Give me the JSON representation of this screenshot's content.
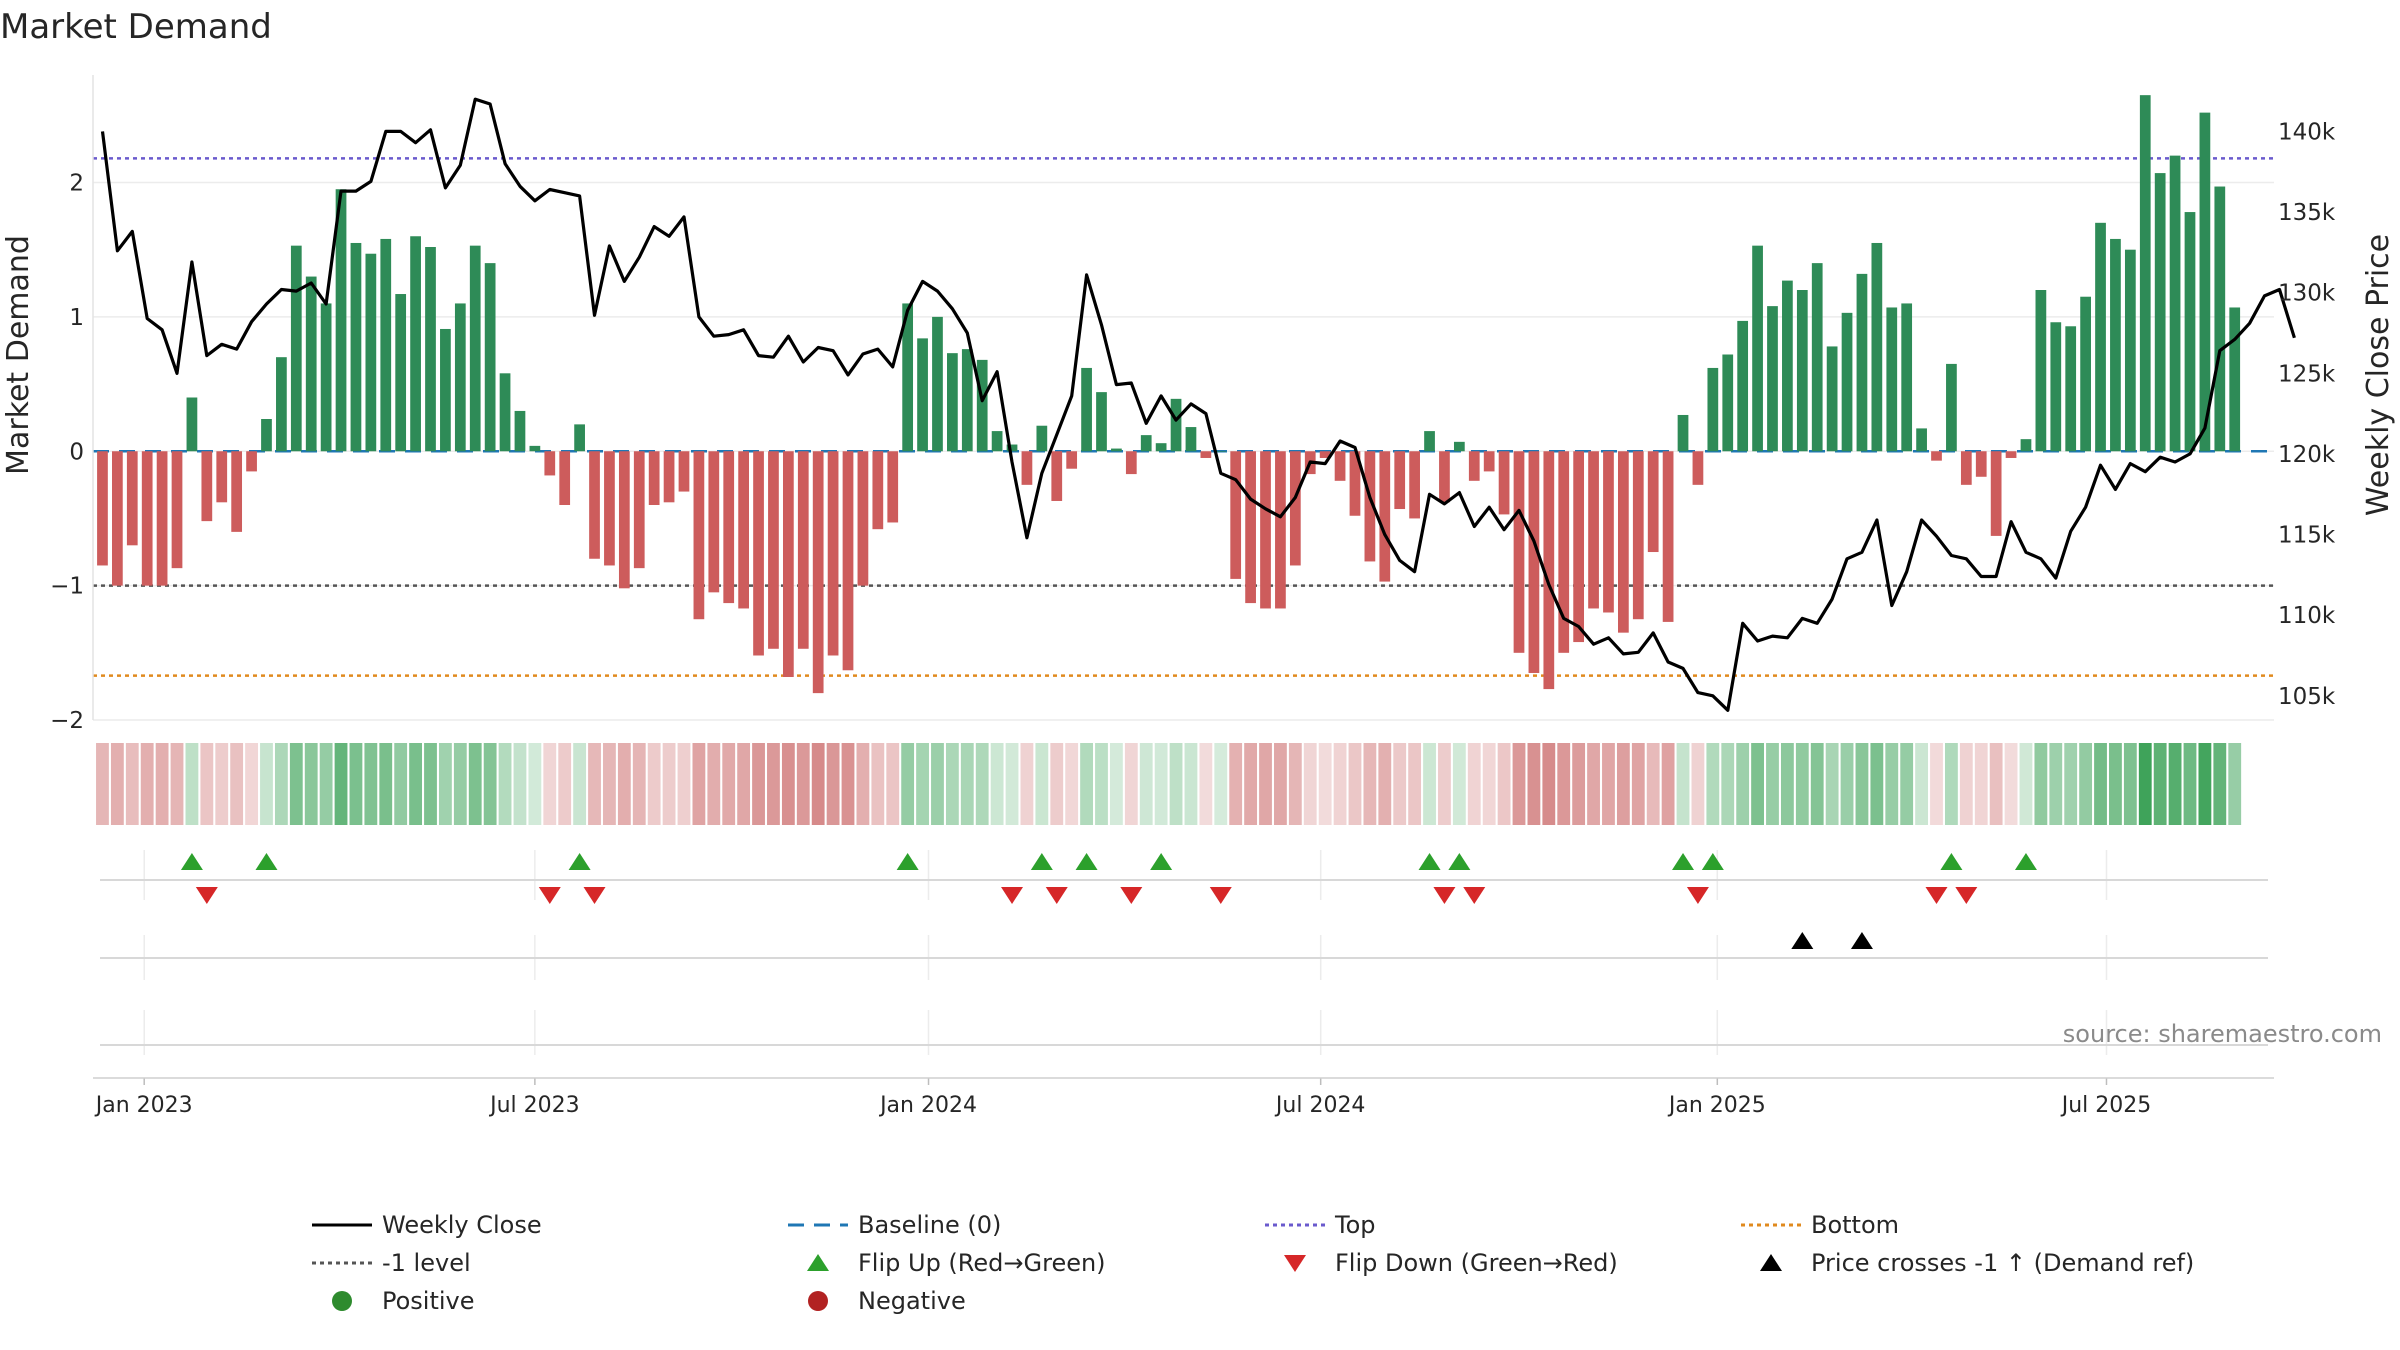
{
  "chart_data": {
    "type": "bar",
    "title": "Market Demand",
    "ylabel": "Market Demand",
    "y2label": "Weekly Close Price",
    "ylim": [
      -2.0,
      2.8
    ],
    "y2lim": [
      103500,
      143500
    ],
    "yticks": [
      -2,
      -1,
      0,
      1,
      2
    ],
    "yticklabels": [
      "−2",
      "−1",
      "0",
      "1",
      "2"
    ],
    "y2ticks": [
      105000,
      110000,
      115000,
      120000,
      125000,
      130000,
      135000,
      140000
    ],
    "y2ticklabels": [
      "105k",
      "110k",
      "115k",
      "120k",
      "125k",
      "130k",
      "135k",
      "140k"
    ],
    "weeks": 146,
    "xticks": [
      3.3,
      29.5,
      55.9,
      82.2,
      108.8,
      134.9
    ],
    "xticklabels": [
      "Jan 2023",
      "Jul 2023",
      "Jan 2024",
      "Jul 2024",
      "Jan 2025",
      "Jul 2025"
    ],
    "levels": {
      "top": 2.18,
      "minus_one": -1.0,
      "bottom": -1.67,
      "baseline": 0
    },
    "colors": {
      "positive": "#2e8b57",
      "negative": "#cd5c5c",
      "price": "#000000",
      "baseline": "#1f77b4",
      "top": "#6a5acd",
      "minus_one": "#555555",
      "bottom": "#e08a1e",
      "flip_up": "#2ca02c",
      "flip_down": "#d62728",
      "price_cross": "#000000",
      "legend_positive": "#2e8b2e",
      "legend_negative": "#b22222"
    },
    "demand": [
      -0.85,
      -1.0,
      -0.7,
      -1.0,
      -1.0,
      -0.87,
      0.4,
      -0.52,
      -0.38,
      -0.6,
      -0.15,
      0.24,
      0.7,
      1.53,
      1.3,
      1.1,
      1.95,
      1.55,
      1.47,
      1.58,
      1.17,
      1.6,
      1.52,
      0.91,
      1.1,
      1.53,
      1.4,
      0.58,
      0.3,
      0.04,
      -0.18,
      -0.4,
      0.2,
      -0.8,
      -0.85,
      -1.02,
      -0.87,
      -0.4,
      -0.38,
      -0.3,
      -1.25,
      -1.05,
      -1.13,
      -1.17,
      -1.52,
      -1.47,
      -1.68,
      -1.47,
      -1.8,
      -1.52,
      -1.63,
      -1.0,
      -0.58,
      -0.53,
      1.1,
      0.84,
      1.0,
      0.73,
      0.76,
      0.68,
      0.15,
      0.05,
      -0.25,
      0.19,
      -0.37,
      -0.13,
      0.62,
      0.44,
      0.02,
      -0.17,
      0.12,
      0.06,
      0.39,
      0.18,
      -0.05,
      0.0,
      -0.95,
      -1.13,
      -1.17,
      -1.17,
      -0.85,
      -0.17,
      -0.05,
      -0.22,
      -0.48,
      -0.82,
      -0.97,
      -0.43,
      -0.5,
      0.15,
      -0.38,
      0.07,
      -0.22,
      -0.15,
      -0.47,
      -1.5,
      -1.65,
      -1.77,
      -1.5,
      -1.42,
      -1.17,
      -1.2,
      -1.35,
      -1.25,
      -0.75,
      -1.27,
      0.27,
      -0.25,
      0.62,
      0.72,
      0.97,
      1.53,
      1.08,
      1.27,
      1.2,
      1.4,
      0.78,
      1.03,
      1.32,
      1.55,
      1.07,
      1.1,
      0.17,
      -0.07,
      0.65,
      -0.25,
      -0.19,
      -0.63,
      -0.05,
      0.09,
      1.2,
      0.96,
      0.93,
      1.15,
      1.7,
      1.58,
      1.5,
      2.65,
      2.07,
      2.2,
      1.78,
      2.52,
      1.97,
      1.07
    ],
    "price": [
      140000,
      132600,
      133800,
      128400,
      127700,
      125000,
      131900,
      126100,
      126800,
      126500,
      128200,
      129300,
      130200,
      130100,
      130600,
      129300,
      136300,
      136300,
      136900,
      140000,
      140000,
      139300,
      140100,
      136500,
      137900,
      142000,
      141700,
      138000,
      136600,
      135700,
      136400,
      136200,
      136000,
      128600,
      132900,
      130700,
      132200,
      134100,
      133500,
      134700,
      128500,
      127300,
      127400,
      127700,
      126100,
      126000,
      127300,
      125700,
      126600,
      126400,
      124900,
      126200,
      126500,
      125400,
      128900,
      130700,
      130100,
      129000,
      127500,
      123300,
      125100,
      119500,
      114800,
      118800,
      121200,
      123600,
      131100,
      128000,
      124300,
      124400,
      121900,
      123600,
      122100,
      123100,
      122500,
      118800,
      118400,
      117200,
      116600,
      116100,
      117300,
      119500,
      119400,
      120800,
      120400,
      117300,
      115000,
      113400,
      112700,
      117500,
      116900,
      117600,
      115500,
      116700,
      115300,
      116500,
      114600,
      111900,
      109800,
      109300,
      108200,
      108600,
      107600,
      107700,
      108900,
      107100,
      106700,
      105200,
      105000,
      104100,
      109500,
      108400,
      108700,
      108600,
      109800,
      109500,
      111000,
      113500,
      113900,
      115900,
      110600,
      112700,
      115900,
      114900,
      113700,
      113500,
      112400,
      112400,
      115800,
      113900,
      113500,
      112300,
      115200,
      116700,
      119300,
      117800,
      119400,
      118900,
      119800,
      119500,
      120000,
      121600,
      126400,
      127100,
      128100,
      129800,
      130200,
      127200
    ],
    "flip_up_weeks": [
      6,
      11,
      32,
      54,
      63,
      66,
      71,
      89,
      91,
      106,
      108,
      124,
      129
    ],
    "flip_down_weeks": [
      7,
      30,
      33,
      61,
      64,
      69,
      75,
      90,
      92,
      107,
      123,
      125
    ],
    "price_cross_weeks": [
      114,
      118
    ],
    "legend": [
      {
        "label": "Weekly Close",
        "kind": "line"
      },
      {
        "label": "Baseline (0)",
        "kind": "baseline"
      },
      {
        "label": "Top",
        "kind": "top"
      },
      {
        "label": "Bottom",
        "kind": "bottom"
      },
      {
        "label": "-1 level",
        "kind": "minus_one"
      },
      {
        "label": "Flip Up (Red→Green)",
        "kind": "flip_up"
      },
      {
        "label": "Flip Down (Green→Red)",
        "kind": "flip_down"
      },
      {
        "label": "Price crosses -1 ↑ (Demand ref)",
        "kind": "price_cross"
      },
      {
        "label": "Positive",
        "kind": "positive"
      },
      {
        "label": "Negative",
        "kind": "negative"
      }
    ],
    "source": "source: sharemaestro.com"
  }
}
